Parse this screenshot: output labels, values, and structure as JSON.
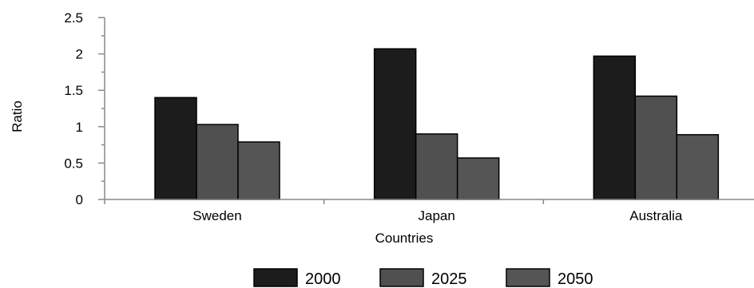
{
  "chart_data": {
    "type": "bar",
    "categories": [
      "Sweden",
      "Japan",
      "Australia"
    ],
    "series": [
      {
        "name": "2000",
        "values": [
          1.4,
          2.07,
          1.97
        ],
        "color": "#1c1c1c"
      },
      {
        "name": "2025",
        "values": [
          1.03,
          0.9,
          1.42
        ],
        "color": "#505050"
      },
      {
        "name": "2050",
        "values": [
          0.79,
          0.57,
          0.89
        ],
        "color": "#555555"
      }
    ],
    "xlabel": "Countries",
    "ylabel": "Ratio",
    "ylim": [
      0,
      2.5
    ],
    "yticks": [
      "0",
      "0.5",
      "1",
      "1.5",
      "2",
      "2.5"
    ],
    "grid": false,
    "legend_position": "bottom"
  }
}
